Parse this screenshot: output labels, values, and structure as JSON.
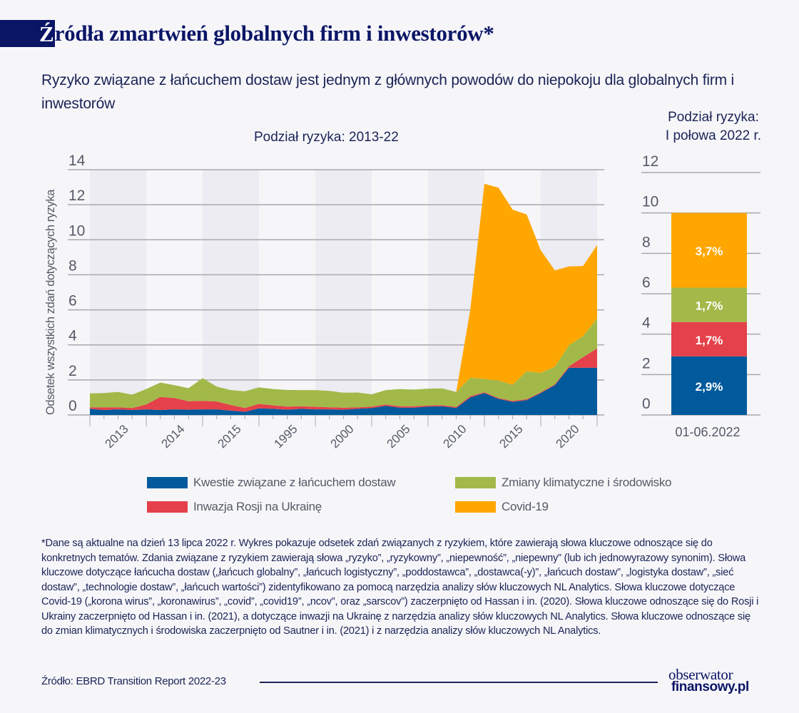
{
  "header": {
    "title_first_letter": "Ź",
    "title_rest": "ródła zmartwień globalnych firm i inwestorów*",
    "subtitle": "Ryzyko związane z łańcuchem dostaw jest jednym z głównych powodów do niepokoju dla globalnych firm i inwestorów"
  },
  "colors": {
    "supply_chain": "#005a9c",
    "russia_invasion": "#e5414a",
    "climate": "#a2b94a",
    "covid": "#ffa700",
    "navy": "#0b1566"
  },
  "chart_data": [
    {
      "type": "area",
      "stacked": true,
      "title": "Podział ryzyka: 2013-22",
      "xlabel": "",
      "ylabel": "Odsetek wszystkich zdań dotyczących ryzyka",
      "ylim": [
        0,
        14
      ],
      "yticks": [
        "0",
        "2",
        "4",
        "6",
        "8",
        "10",
        "12",
        "14"
      ],
      "grid": true,
      "xtick_labels": [
        "2013",
        "2014",
        "2015",
        "1995",
        "2000",
        "2005",
        "2010",
        "2015",
        "2020"
      ],
      "x_points": 37,
      "series": [
        {
          "name": "Kwestie związane z łańcuchem dostaw",
          "color_key": "supply_chain",
          "values": [
            0.35,
            0.28,
            0.32,
            0.28,
            0.32,
            0.28,
            0.32,
            0.3,
            0.32,
            0.32,
            0.25,
            0.18,
            0.38,
            0.35,
            0.3,
            0.35,
            0.32,
            0.32,
            0.3,
            0.35,
            0.4,
            0.52,
            0.42,
            0.42,
            0.48,
            0.5,
            0.4,
            1.0,
            1.25,
            0.92,
            0.75,
            0.85,
            1.25,
            1.7,
            2.7,
            2.7,
            2.7
          ]
        },
        {
          "name": "Inwazja Rosji na Ukrainę",
          "color_key": "russia_invasion",
          "values": [
            0.08,
            0.15,
            0.12,
            0.12,
            0.28,
            0.75,
            0.65,
            0.48,
            0.48,
            0.45,
            0.32,
            0.22,
            0.25,
            0.2,
            0.18,
            0.15,
            0.15,
            0.12,
            0.12,
            0.08,
            0.08,
            0.08,
            0.08,
            0.08,
            0.06,
            0.06,
            0.06,
            0.08,
            0.05,
            0.05,
            0.05,
            0.05,
            0.05,
            0.05,
            0.08,
            0.6,
            1.1
          ]
        },
        {
          "name": "Zmiany klimatyczne i środowisko",
          "color_key": "climate",
          "values": [
            0.8,
            0.82,
            0.88,
            0.76,
            0.88,
            0.82,
            0.73,
            0.75,
            1.3,
            0.85,
            0.85,
            0.95,
            0.95,
            0.93,
            0.95,
            0.92,
            0.95,
            0.93,
            0.85,
            0.85,
            0.7,
            0.82,
            0.98,
            0.95,
            0.96,
            0.96,
            0.85,
            1.05,
            0.75,
            1.0,
            0.92,
            1.6,
            1.1,
            1.0,
            1.2,
            1.2,
            1.7
          ]
        },
        {
          "name": "Covid-19",
          "color_key": "covid",
          "values": [
            0,
            0,
            0,
            0,
            0,
            0,
            0,
            0,
            0,
            0,
            0,
            0,
            0,
            0,
            0,
            0,
            0,
            0,
            0,
            0,
            0,
            0,
            0,
            0,
            0,
            0,
            0,
            3.9,
            11.15,
            11.0,
            10.0,
            8.95,
            7.0,
            5.5,
            4.5,
            4.0,
            4.2
          ]
        }
      ]
    },
    {
      "type": "bar",
      "stacked": true,
      "title": "Podział ryzyka: I połowa 2022 r.",
      "categories": [
        "01-06.2022"
      ],
      "ylim": [
        0,
        12
      ],
      "yticks": [
        "0",
        "2",
        "4",
        "6",
        "8",
        "10",
        "12"
      ],
      "grid": true,
      "series": [
        {
          "name": "Kwestie związane z łańcuchem dostaw",
          "color_key": "supply_chain",
          "values": [
            2.9
          ],
          "label": "2,9%"
        },
        {
          "name": "Inwazja Rosji na Ukrainę",
          "color_key": "russia_invasion",
          "values": [
            1.7
          ],
          "label": "1,7%"
        },
        {
          "name": "Zmiany klimatyczne i środowisko",
          "color_key": "climate",
          "values": [
            1.7
          ],
          "label": "1,7%"
        },
        {
          "name": "Covid-19",
          "color_key": "covid",
          "values": [
            3.7
          ],
          "label": "3,7%"
        }
      ]
    }
  ],
  "legend": [
    {
      "label": "Kwestie związane z łańcuchem dostaw",
      "color_key": "supply_chain"
    },
    {
      "label": "Zmiany klimatyczne i środowisko",
      "color_key": "climate"
    },
    {
      "label": "Inwazja Rosji na Ukrainę",
      "color_key": "russia_invasion"
    },
    {
      "label": "Covid-19",
      "color_key": "covid"
    }
  ],
  "footnote": "*Dane są aktualne na dzień 13 lipca 2022 r. Wykres pokazuje odsetek zdań związanych z ryzykiem, które zawierają słowa kluczowe odnoszące się do konkretnych tematów. Zdania związane z ryzykiem zawierają słowa „ryzyko”, „ryzykowny”, „niepewność”, „niepewny” (lub ich jednowyrazowy synonim). Słowa kluczowe dotyczące łańcucha dostaw („łańcuch globalny”, „łańcuch logistyczny”, „poddostawca”, „dostawca(-y)”, „łańcuch dostaw”, „logistyka dostaw”, „sieć dostaw”, „technologie dostaw”, „łańcuch wartości”) zidentyfikowano za pomocą narzędzia analizy słów kluczowych NL Analytics. Słowa kluczowe dotyczące Covid-19 („korona wirus”, „koronawirus”, „covid”, „covid19”, „ncov”, oraz „sarscov”) zaczerpnięto od Hassan i in. (2020). Słowa kluczowe odnoszące się do Rosji i Ukrainy zaczerpnięto od Hassan i in. (2021), a dotyczące inwazji na Ukrainę z narzędzia analizy słów kluczowych NL Analytics. Słowa kluczowe odnoszące się do zmian klimatycznych i środowiska zaczerpnięto od Sautner i in. (2021) i z narzędzia analizy słów kluczowych NL Analytics.",
  "source": "Źródło: EBRD Transition Report 2022-23",
  "logo": {
    "top": "obserwator",
    "bottom": "finansowy.pl"
  }
}
